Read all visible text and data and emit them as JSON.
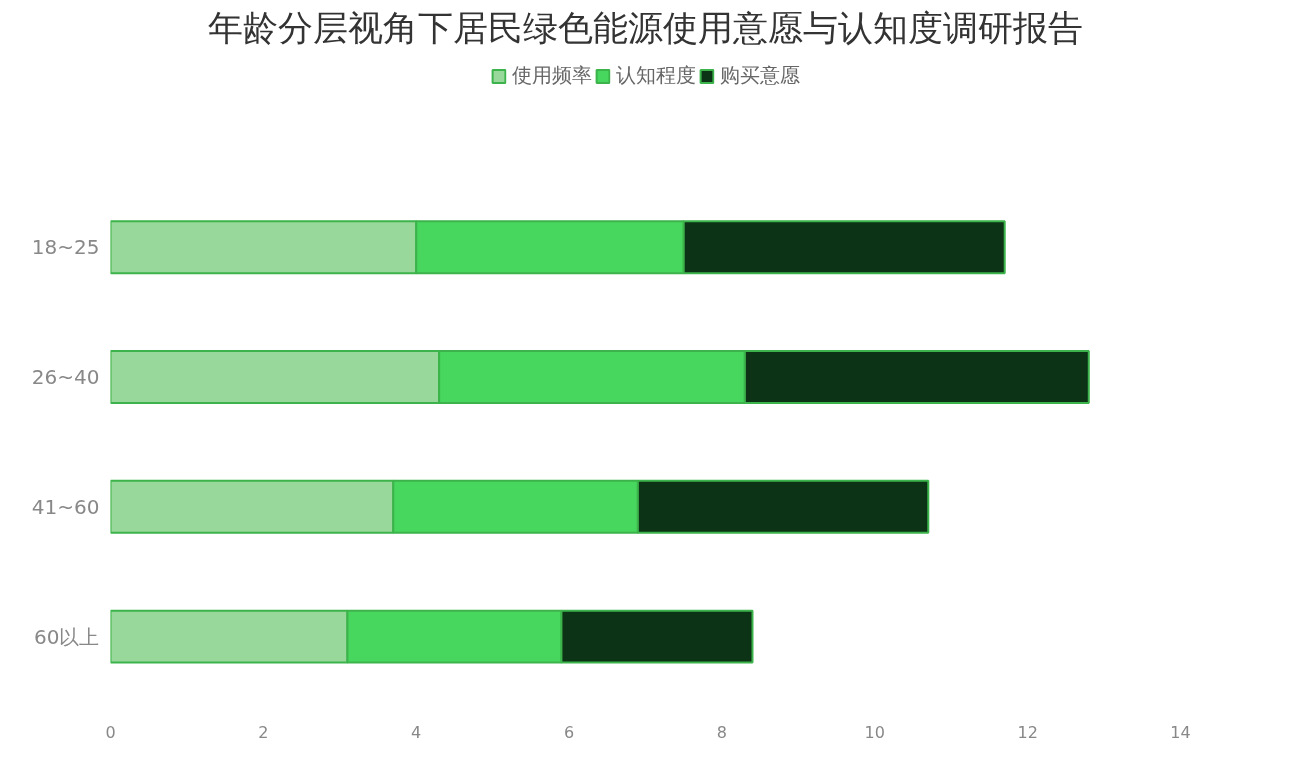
{
  "chart_data": {
    "type": "bar",
    "orientation": "horizontal",
    "stacked": true,
    "title": "年龄分层视角下居民绿色能源使用意愿与认知度调研报告",
    "categories": [
      "18~25",
      "26~40",
      "41~60",
      "60以上"
    ],
    "series": [
      {
        "name": "使用频率",
        "color": "#98d89a",
        "values": [
          4.0,
          4.3,
          3.7,
          3.1
        ]
      },
      {
        "name": "认知程度",
        "color": "#47d65e",
        "values": [
          3.5,
          4.0,
          3.2,
          2.8
        ]
      },
      {
        "name": "购买意愿",
        "color": "#0c3315",
        "values": [
          4.2,
          4.5,
          3.8,
          2.5
        ]
      }
    ],
    "xlim": [
      0,
      14
    ],
    "xticks": [
      0,
      2,
      4,
      6,
      8,
      10,
      12,
      14
    ],
    "grid": false,
    "legend": "top"
  }
}
